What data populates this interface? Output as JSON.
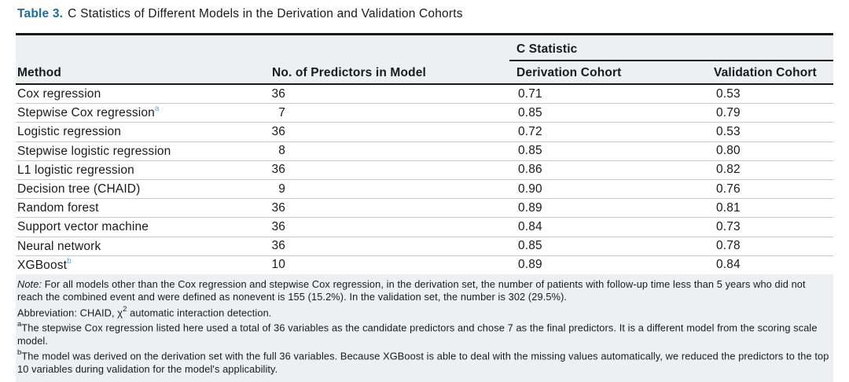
{
  "title": {
    "label": "Table 3.",
    "text": "C Statistics of Different Models in the Derivation and Validation Cohorts"
  },
  "table": {
    "span_header": "C Statistic",
    "columns": [
      "Method",
      "No. of Predictors in Model",
      "Derivation Cohort",
      "Validation Cohort"
    ],
    "rows": [
      {
        "method": "Cox regression",
        "sup": "",
        "predictors": "36",
        "derivation": "0.71",
        "validation": "0.53"
      },
      {
        "method": "Stepwise Cox regression",
        "sup": "a",
        "predictors": "7",
        "derivation": "0.85",
        "validation": "0.79"
      },
      {
        "method": "Logistic regression",
        "sup": "",
        "predictors": "36",
        "derivation": "0.72",
        "validation": "0.53"
      },
      {
        "method": "Stepwise logistic regression",
        "sup": "",
        "predictors": "8",
        "derivation": "0.85",
        "validation": "0.80"
      },
      {
        "method": "L1 logistic regression",
        "sup": "",
        "predictors": "36",
        "derivation": "0.86",
        "validation": "0.82"
      },
      {
        "method": "Decision tree (CHAID)",
        "sup": "",
        "predictors": "9",
        "derivation": "0.90",
        "validation": "0.76"
      },
      {
        "method": "Random forest",
        "sup": "",
        "predictors": "36",
        "derivation": "0.89",
        "validation": "0.81"
      },
      {
        "method": "Support vector machine",
        "sup": "",
        "predictors": "36",
        "derivation": "0.84",
        "validation": "0.73"
      },
      {
        "method": "Neural network",
        "sup": "",
        "predictors": "36",
        "derivation": "0.85",
        "validation": "0.78"
      },
      {
        "method": "XGBoost",
        "sup": "b",
        "predictors": "10",
        "derivation": "0.89",
        "validation": "0.84"
      }
    ]
  },
  "footnotes": {
    "note_label": "Note:",
    "note_text": " For all models other than the Cox regression and stepwise Cox regression, in the derivation set, the number of patients with follow-up time less than 5 years who did not reach the combined event and were defined as nonevent is 155 (15.2%). In the validation set, the number is 302 (29.5%).",
    "abbreviation_prefix": "Abbreviation: CHAID, χ",
    "abbreviation_sup": "2",
    "abbreviation_suffix": " automatic interaction detection.",
    "footnote_a_sup": "a",
    "footnote_a_text": "The stepwise Cox regression listed here used a total of 36 variables as the candidate predictors and chose 7 as the final predictors. It is a different model from the scoring scale model.",
    "footnote_b_sup": "b",
    "footnote_b_text": "The model was derived on the derivation set with the full 36 variables. Because XGBoost is able to deal with the missing values automatically, we reduced the predictors to the top 10 variables during validation for the model's applicability."
  },
  "colors": {
    "title_accent": "#1c6e9d",
    "superscript_accent": "#5ea9cf",
    "header_background": "#edeff1",
    "footnote_background": "#edeff1",
    "rule_black": "#1a1a1a",
    "row_divider": "#c4c8cb"
  }
}
